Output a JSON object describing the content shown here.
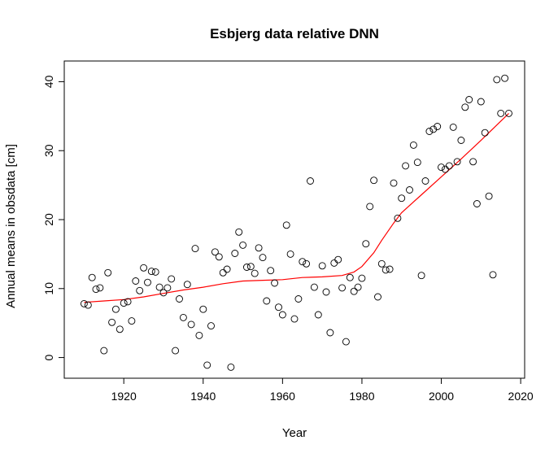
{
  "chart_data": {
    "type": "scatter",
    "title": "Esbjerg data relative DNN",
    "xlabel": "Year",
    "ylabel": "Annual means in obsdata [cm]",
    "xlim": [
      1905,
      2021
    ],
    "ylim": [
      -3,
      43
    ],
    "x_ticks": [
      1920,
      1940,
      1960,
      1980,
      2000,
      2020
    ],
    "y_ticks": [
      0,
      10,
      20,
      30,
      40
    ],
    "grid": false,
    "legend": "none",
    "colors": {
      "points": "#000000",
      "trend": "#ff0000"
    },
    "series": [
      {
        "type": "scatter",
        "marker": "open-circle",
        "x": [
          1910,
          1911,
          1912,
          1913,
          1914,
          1915,
          1916,
          1917,
          1918,
          1919,
          1920,
          1921,
          1922,
          1923,
          1924,
          1925,
          1926,
          1927,
          1928,
          1929,
          1930,
          1931,
          1932,
          1933,
          1934,
          1935,
          1936,
          1937,
          1938,
          1939,
          1940,
          1941,
          1942,
          1943,
          1944,
          1945,
          1946,
          1947,
          1948,
          1949,
          1950,
          1951,
          1952,
          1953,
          1954,
          1955,
          1956,
          1957,
          1958,
          1959,
          1960,
          1961,
          1962,
          1963,
          1964,
          1965,
          1966,
          1967,
          1968,
          1969,
          1970,
          1971,
          1972,
          1973,
          1974,
          1975,
          1976,
          1977,
          1978,
          1979,
          1980,
          1981,
          1982,
          1983,
          1984,
          1985,
          1986,
          1987,
          1988,
          1989,
          1990,
          1991,
          1992,
          1993,
          1994,
          1995,
          1996,
          1997,
          1998,
          1999,
          2000,
          2001,
          2002,
          2003,
          2004,
          2005,
          2006,
          2007,
          2008,
          2009,
          2010,
          2011,
          2012,
          2013,
          2014,
          2015,
          2016,
          2017
        ],
        "y": [
          7.8,
          7.6,
          11.6,
          9.9,
          10.1,
          1.0,
          12.3,
          5.1,
          7.0,
          4.1,
          7.9,
          8.1,
          5.3,
          11.1,
          9.7,
          13.0,
          10.9,
          12.5,
          12.4,
          10.2,
          9.4,
          10.1,
          11.4,
          1.0,
          8.5,
          5.8,
          10.6,
          4.8,
          15.8,
          3.2,
          7.0,
          -1.1,
          4.6,
          15.3,
          14.6,
          12.3,
          12.8,
          -1.4,
          15.1,
          18.2,
          16.3,
          13.1,
          13.2,
          12.2,
          15.9,
          14.5,
          8.2,
          12.6,
          10.8,
          7.3,
          6.2,
          19.2,
          15.0,
          5.6,
          8.5,
          13.9,
          13.6,
          25.6,
          10.2,
          6.2,
          13.3,
          9.5,
          3.6,
          13.7,
          14.2,
          10.1,
          2.3,
          11.6,
          9.6,
          10.2,
          11.5,
          16.5,
          21.9,
          25.7,
          8.8,
          13.6,
          12.7,
          12.8,
          25.3,
          20.2,
          23.1,
          27.8,
          24.3,
          30.8,
          28.3,
          11.9,
          25.6,
          32.8,
          33.1,
          33.5,
          27.6,
          27.3,
          27.8,
          33.4,
          28.4,
          31.5,
          36.3,
          37.4,
          28.4,
          22.3,
          37.1,
          32.6,
          23.4,
          12.0,
          40.3,
          35.4,
          40.5,
          35.4
        ]
      },
      {
        "type": "line",
        "x": [
          1910,
          1915,
          1920,
          1925,
          1930,
          1935,
          1940,
          1945,
          1950,
          1955,
          1960,
          1965,
          1970,
          1975,
          1978,
          1980,
          1983,
          1985,
          1988,
          1990,
          1995,
          2000,
          2005,
          2010,
          2017
        ],
        "y": [
          8.0,
          8.2,
          8.4,
          8.8,
          9.3,
          9.8,
          10.2,
          10.7,
          11.1,
          11.2,
          11.3,
          11.6,
          11.7,
          11.9,
          12.4,
          13.2,
          15.2,
          17.0,
          19.5,
          21.0,
          23.6,
          26.2,
          28.8,
          31.5,
          35.4
        ]
      }
    ]
  }
}
